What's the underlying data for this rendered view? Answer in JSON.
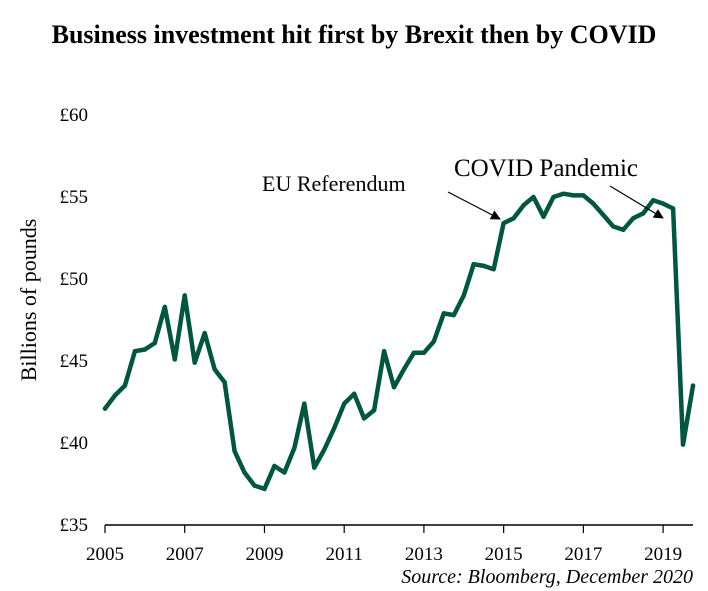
{
  "chart_data": {
    "type": "line",
    "title": "Business investment hit first by Brexit then by COVID",
    "ylabel": "Billions of pounds",
    "xlabel": "",
    "xlim": [
      2005,
      2019.75
    ],
    "ylim": [
      35,
      60
    ],
    "y_ticks": [
      35,
      40,
      45,
      50,
      55,
      60
    ],
    "y_tick_labels": [
      "£35",
      "£40",
      "£45",
      "£50",
      "£55",
      "£60"
    ],
    "x_ticks": [
      2005,
      2007,
      2009,
      2011,
      2013,
      2015,
      2017,
      2019
    ],
    "x_tick_labels": [
      "2005",
      "2007",
      "2009",
      "2011",
      "2013",
      "2015",
      "2017",
      "2019"
    ],
    "grid": false,
    "line_color": "#00573f",
    "series": [
      {
        "x": [
          2005.0,
          2005.25,
          2005.5,
          2005.75,
          2006.0,
          2006.25,
          2006.5,
          2006.75,
          2007.0,
          2007.25,
          2007.5,
          2007.75,
          2008.0,
          2008.25,
          2008.5,
          2008.75,
          2009.0,
          2009.25,
          2009.5,
          2009.75,
          2010.0,
          2010.25,
          2010.5,
          2010.75,
          2011.0,
          2011.25,
          2011.5,
          2011.75,
          2012.0,
          2012.25,
          2012.5,
          2012.75,
          2013.0,
          2013.25,
          2013.5,
          2013.75,
          2014.0,
          2014.25,
          2014.5,
          2014.75,
          2015.0,
          2015.25,
          2015.5,
          2015.75,
          2016.0,
          2016.25,
          2016.5,
          2016.75,
          2017.0,
          2017.25,
          2017.5,
          2017.75,
          2018.0,
          2018.25,
          2018.5,
          2018.75,
          2019.0,
          2019.25,
          2019.5,
          2019.75
        ],
        "values": [
          42.1,
          42.9,
          43.5,
          45.6,
          45.7,
          46.1,
          48.3,
          45.1,
          49.0,
          44.9,
          46.7,
          44.5,
          43.7,
          39.5,
          38.2,
          37.4,
          37.2,
          38.6,
          38.2,
          39.7,
          42.4,
          38.5,
          39.6,
          40.9,
          42.4,
          43.0,
          41.5,
          42.0,
          45.6,
          43.4,
          44.5,
          45.5,
          45.5,
          46.2,
          47.9,
          47.8,
          49.0,
          50.9,
          50.8,
          50.6,
          53.4,
          53.7,
          54.5,
          55.0,
          53.8,
          55.0,
          55.2,
          55.1,
          55.1,
          54.6,
          53.9,
          53.2,
          53.0,
          53.7,
          54.0,
          54.8,
          54.6,
          54.3,
          39.9,
          43.5
        ]
      }
    ],
    "annotations": [
      {
        "text": "EU Referendum",
        "x": 2015,
        "y": 53.4
      },
      {
        "text": "COVID Pandemic",
        "x": 2019.25,
        "y": 54.3
      }
    ],
    "source": "Source: Bloomberg, December 2020"
  }
}
